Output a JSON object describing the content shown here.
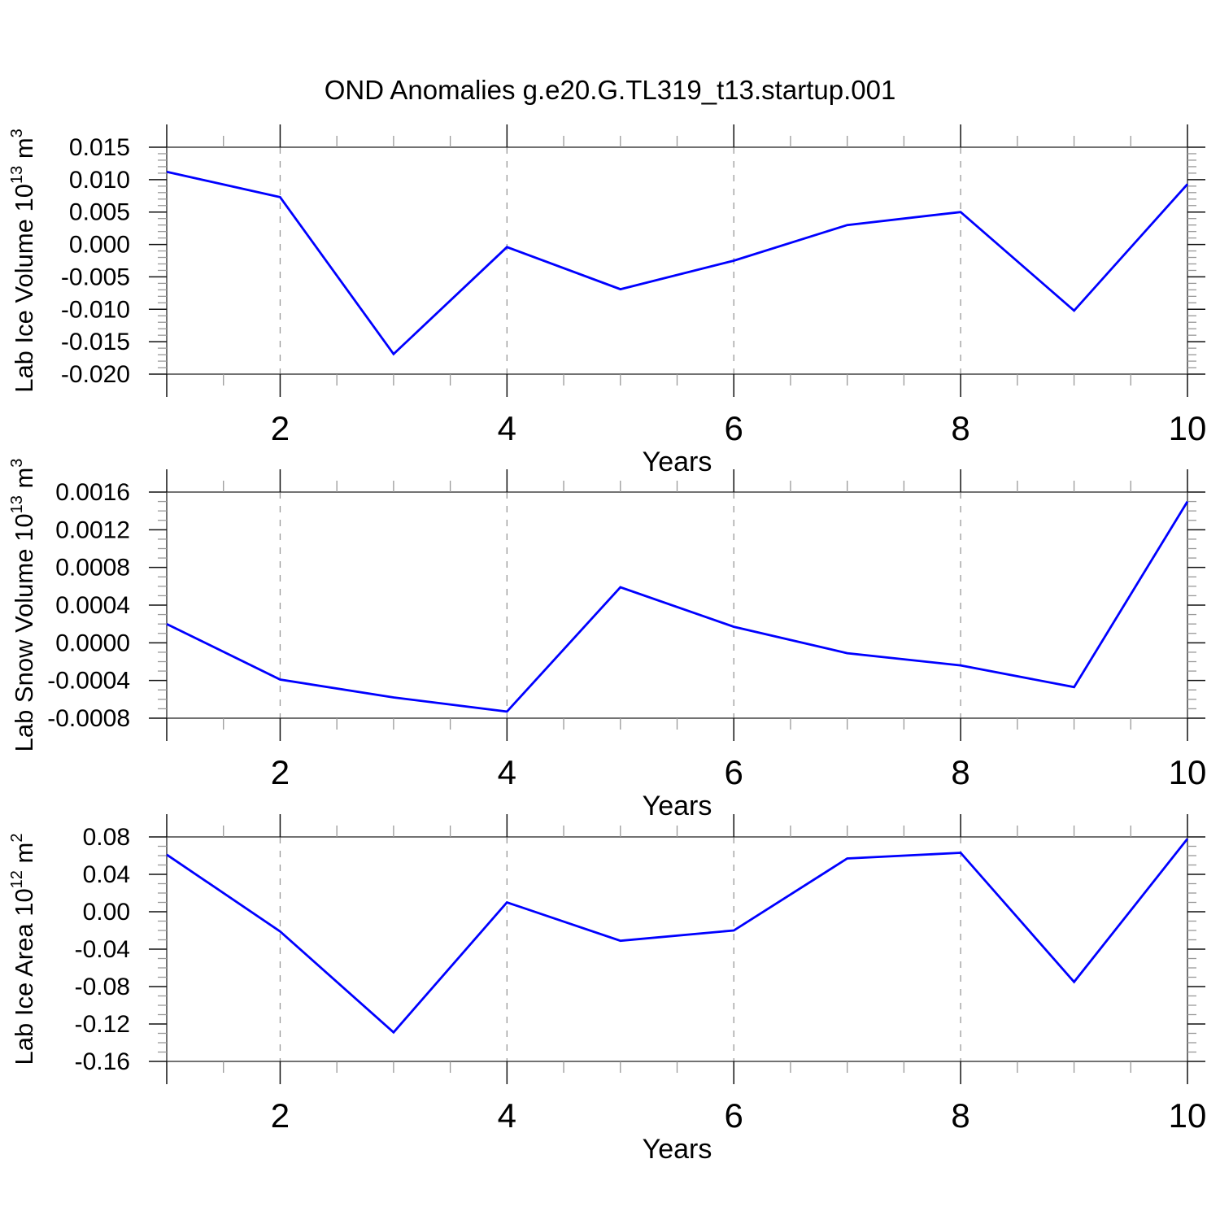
{
  "title": "OND Anomalies g.e20.G.TL319_t13.startup.001",
  "colors": {
    "line": "#0000ff",
    "grid": "#999999",
    "frame": "#444444",
    "tick_major": "#111111",
    "tick_minor": "#999999",
    "text": "#000000",
    "background": "#ffffff"
  },
  "chart_data": [
    {
      "type": "line",
      "name": "lab-ice-volume",
      "ylabel_parts": [
        {
          "t": "Lab Ice Volume 10"
        },
        {
          "t": "13",
          "sup": true
        },
        {
          "t": " m"
        },
        {
          "t": "3",
          "sup": true
        }
      ],
      "xlabel": "Years",
      "x": [
        1,
        2,
        3,
        4,
        5,
        6,
        7,
        8,
        9,
        10
      ],
      "values": [
        0.0112,
        0.0073,
        -0.0169,
        -0.0004,
        -0.0069,
        -0.0025,
        0.003,
        0.005,
        -0.0102,
        0.0093
      ],
      "xlim": [
        1,
        10
      ],
      "ylim": [
        -0.02,
        0.015
      ],
      "yticks": [
        0.015,
        0.01,
        0.005,
        0.0,
        -0.005,
        -0.01,
        -0.015,
        -0.02
      ],
      "ytick_labels": [
        "0.015",
        "0.010",
        "0.005",
        "0.000",
        "-0.005",
        "-0.010",
        "-0.015",
        "-0.020"
      ],
      "yminor_step": 0.001,
      "xticks": [
        2,
        4,
        6,
        8,
        10
      ],
      "xtick_labels": [
        "2",
        "4",
        "6",
        "8",
        "10"
      ],
      "xminor_step": 0.5,
      "grid_x": [
        2,
        4,
        6,
        8
      ],
      "grid_style": "dashed"
    },
    {
      "type": "line",
      "name": "lab-snow-volume",
      "ylabel_parts": [
        {
          "t": "Lab Snow Volume 10"
        },
        {
          "t": "13",
          "sup": true
        },
        {
          "t": " m"
        },
        {
          "t": "3",
          "sup": true
        }
      ],
      "xlabel": "Years",
      "x": [
        1,
        2,
        3,
        4,
        5,
        6,
        7,
        8,
        9,
        10
      ],
      "values": [
        0.0002,
        -0.00039,
        -0.00058,
        -0.00073,
        0.00059,
        0.00017,
        -0.00011,
        -0.00024,
        -0.00047,
        0.0015
      ],
      "xlim": [
        1,
        10
      ],
      "ylim": [
        -0.0008,
        0.0016
      ],
      "yticks": [
        0.0016,
        0.0012,
        0.0008,
        0.0004,
        0.0,
        -0.0004,
        -0.0008
      ],
      "ytick_labels": [
        "0.0016",
        "0.0012",
        "0.0008",
        "0.0004",
        "0.0000",
        "-0.0004",
        "-0.0008"
      ],
      "yminor_step": 0.0001,
      "xticks": [
        2,
        4,
        6,
        8,
        10
      ],
      "xtick_labels": [
        "2",
        "4",
        "6",
        "8",
        "10"
      ],
      "xminor_step": 0.5,
      "grid_x": [
        2,
        4,
        6,
        8
      ],
      "grid_style": "dashed"
    },
    {
      "type": "line",
      "name": "lab-ice-area",
      "ylabel_parts": [
        {
          "t": "Lab Ice Area 10"
        },
        {
          "t": "12",
          "sup": true
        },
        {
          "t": " m"
        },
        {
          "t": "2",
          "sup": true
        }
      ],
      "xlabel": "Years",
      "x": [
        1,
        2,
        3,
        4,
        5,
        6,
        7,
        8,
        9,
        10
      ],
      "values": [
        0.061,
        -0.021,
        -0.129,
        0.01,
        -0.031,
        -0.02,
        0.057,
        0.063,
        -0.075,
        0.078
      ],
      "xlim": [
        1,
        10
      ],
      "ylim": [
        -0.16,
        0.08
      ],
      "yticks": [
        0.08,
        0.04,
        0.0,
        -0.04,
        -0.08,
        -0.12,
        -0.16
      ],
      "ytick_labels": [
        "0.08",
        "0.04",
        "0.00",
        "-0.04",
        "-0.08",
        "-0.12",
        "-0.16"
      ],
      "yminor_step": 0.01,
      "xticks": [
        2,
        4,
        6,
        8,
        10
      ],
      "xtick_labels": [
        "2",
        "4",
        "6",
        "8",
        "10"
      ],
      "xminor_step": 0.5,
      "grid_x": [
        2,
        4,
        6,
        8
      ],
      "grid_style": "dashed"
    }
  ]
}
